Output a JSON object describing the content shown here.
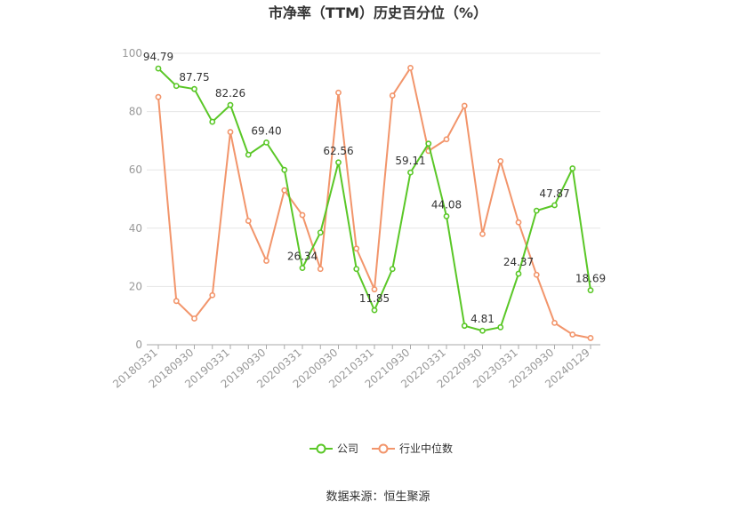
{
  "chart_data": {
    "type": "line",
    "title": "市净率（TTM）历史百分位（%）",
    "source": "数据来源：恒生聚源",
    "ylim": [
      0,
      100
    ],
    "y_ticks": [
      "0",
      "20",
      "40",
      "60",
      "80",
      "100"
    ],
    "grid": true,
    "legend_position": "bottom-center",
    "categories": [
      "20180331",
      "20180630",
      "20180930",
      "20181231",
      "20190331",
      "20190630",
      "20190930",
      "20191231",
      "20200331",
      "20200630",
      "20200930",
      "20201231",
      "20210331",
      "20210630",
      "20210930",
      "20211231",
      "20220331",
      "20220630",
      "20220930",
      "20221231",
      "20230331",
      "20230630",
      "20230930",
      "20231231",
      "20240129"
    ],
    "x_tick_labels": [
      "20180331",
      "20180930",
      "20190331",
      "20190930",
      "20200331",
      "20200930",
      "20210331",
      "20210930",
      "20220331",
      "20220930",
      "20230331",
      "20230930",
      "20240129"
    ],
    "series": [
      {
        "name": "公司",
        "color": "#5ac727",
        "values": [
          94.79,
          88.8,
          87.75,
          76.5,
          82.26,
          65.2,
          69.4,
          60.0,
          26.34,
          38.5,
          62.56,
          26.0,
          11.85,
          26.0,
          59.11,
          69.0,
          44.08,
          6.5,
          4.81,
          6.0,
          24.37,
          46.0,
          47.87,
          60.5,
          18.69
        ],
        "labels": [
          "94.79",
          "",
          "87.75",
          "",
          "82.26",
          "",
          "69.40",
          "",
          "26.34",
          "",
          "62.56",
          "",
          "11.85",
          "",
          "59.11",
          "",
          "44.08",
          "",
          "4.81",
          "",
          "24.37",
          "",
          "47.87",
          "",
          "18.69"
        ]
      },
      {
        "name": "行业中位数",
        "color": "#f2956b",
        "values": [
          85.0,
          15.0,
          9.0,
          17.0,
          73.0,
          42.5,
          28.8,
          53.0,
          44.5,
          26.0,
          86.5,
          33.0,
          19.0,
          85.5,
          95.0,
          66.5,
          70.5,
          82.0,
          38.0,
          63.0,
          42.0,
          24.0,
          7.5,
          3.5,
          2.3
        ]
      }
    ]
  }
}
